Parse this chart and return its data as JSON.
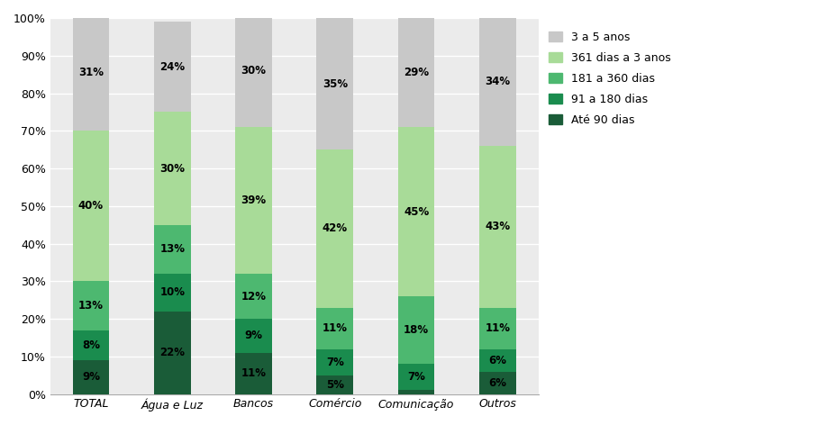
{
  "categories": [
    "TOTAL",
    "Água e Luz",
    "Bancos",
    "Comércio",
    "Comunicação",
    "Outros"
  ],
  "series": {
    "Até 90 dias": [
      9,
      22,
      11,
      5,
      1,
      6
    ],
    "91 a 180 dias": [
      8,
      10,
      9,
      7,
      7,
      6
    ],
    "181 a 360 dias": [
      13,
      13,
      12,
      11,
      18,
      11
    ],
    "361 dias a 3 anos": [
      40,
      30,
      39,
      42,
      45,
      43
    ],
    "3 a 5 anos": [
      31,
      24,
      30,
      35,
      29,
      34
    ]
  },
  "colors": {
    "Até 90 dias": "#1a5c38",
    "91 a 180 dias": "#1a8c4e",
    "181 a 360 dias": "#4db870",
    "361 dias a 3 anos": "#a8db98",
    "3 a 5 anos": "#c8c8c8"
  },
  "legend_order": [
    "3 a 5 anos",
    "361 dias a 3 anos",
    "181 a 360 dias",
    "91 a 180 dias",
    "Até 90 dias"
  ],
  "bar_width": 0.45,
  "figsize": [
    9.29,
    4.72
  ],
  "dpi": 100,
  "ylim": [
    0,
    100
  ],
  "yticks": [
    0,
    10,
    20,
    30,
    40,
    50,
    60,
    70,
    80,
    90,
    100
  ],
  "ytick_labels": [
    "0%",
    "10%",
    "20%",
    "30%",
    "40%",
    "50%",
    "60%",
    "70%",
    "80%",
    "90%",
    "100%"
  ],
  "label_fontsize": 8.5,
  "label_color": "#000000",
  "tick_fontsize": 9,
  "legend_fontsize": 9,
  "bg_color": "#ffffff",
  "grid_color": "#ffffff"
}
